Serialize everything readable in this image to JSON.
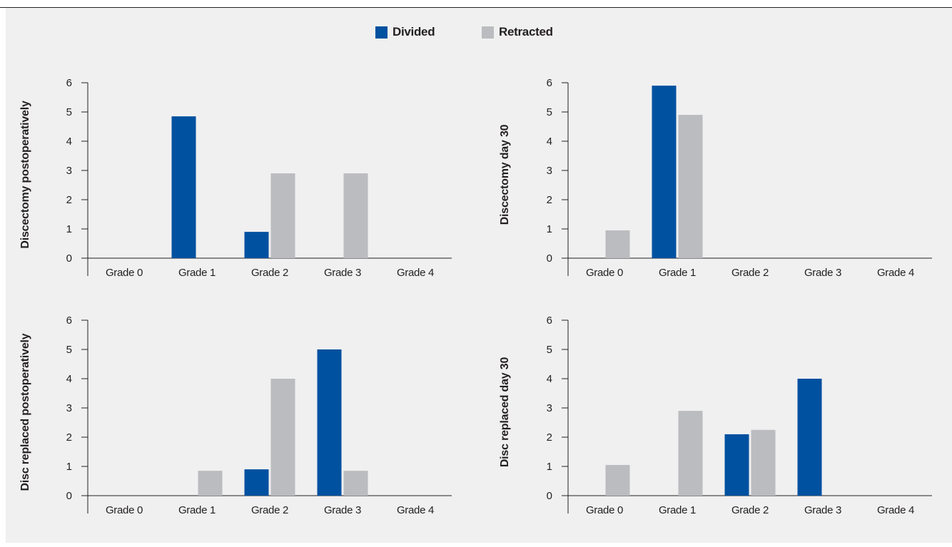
{
  "colors": {
    "divided": "#0051a0",
    "retracted": "#bbbcbf",
    "axis": "#231f20",
    "background": "#f0f0f1"
  },
  "legend": {
    "position": "top-center",
    "items": [
      {
        "name": "Divided",
        "color": "#0051a0"
      },
      {
        "name": "Retracted",
        "color": "#bbbcbf"
      }
    ]
  },
  "chart_data": [
    {
      "type": "bar",
      "ylabel": "Discectomy postoperatively",
      "categories": [
        "Grade 0",
        "Grade 1",
        "Grade 2",
        "Grade 3",
        "Grade 4"
      ],
      "ylim": [
        0,
        6
      ],
      "yticks": [
        "0",
        "1",
        "2",
        "3",
        "4",
        "5",
        "6"
      ],
      "series": [
        {
          "name": "Divided",
          "values": [
            0,
            4.85,
            0.9,
            0,
            0
          ]
        },
        {
          "name": "Retracted",
          "values": [
            0,
            0,
            2.9,
            2.9,
            0
          ]
        }
      ]
    },
    {
      "type": "bar",
      "ylabel": "Discectomy day 30",
      "categories": [
        "Grade 0",
        "Grade 1",
        "Grade 2",
        "Grade 3",
        "Grade 4"
      ],
      "ylim": [
        0,
        6
      ],
      "yticks": [
        "0",
        "1",
        "2",
        "3",
        "4",
        "5",
        "6"
      ],
      "series": [
        {
          "name": "Divided",
          "values": [
            0,
            5.9,
            0,
            0,
            0
          ]
        },
        {
          "name": "Retracted",
          "values": [
            0.95,
            4.9,
            0,
            0,
            0
          ]
        }
      ]
    },
    {
      "type": "bar",
      "ylabel": "Disc replaced postoperatively",
      "categories": [
        "Grade 0",
        "Grade 1",
        "Grade 2",
        "Grade 3",
        "Grade 4"
      ],
      "ylim": [
        0,
        6
      ],
      "yticks": [
        "0",
        "1",
        "2",
        "3",
        "4",
        "5",
        "6"
      ],
      "series": [
        {
          "name": "Divided",
          "values": [
            0,
            0,
            0.9,
            5.0,
            0
          ]
        },
        {
          "name": "Retracted",
          "values": [
            0,
            0.85,
            4.0,
            0.85,
            0
          ]
        }
      ]
    },
    {
      "type": "bar",
      "ylabel": "Disc replaced day 30",
      "categories": [
        "Grade 0",
        "Grade 1",
        "Grade 2",
        "Grade 3",
        "Grade 4"
      ],
      "ylim": [
        0,
        6
      ],
      "yticks": [
        "0",
        "1",
        "2",
        "3",
        "4",
        "5",
        "6"
      ],
      "series": [
        {
          "name": "Divided",
          "values": [
            0,
            0,
            2.1,
            4.0,
            0
          ]
        },
        {
          "name": "Retracted",
          "values": [
            1.05,
            2.9,
            2.25,
            0,
            0
          ]
        }
      ]
    }
  ]
}
